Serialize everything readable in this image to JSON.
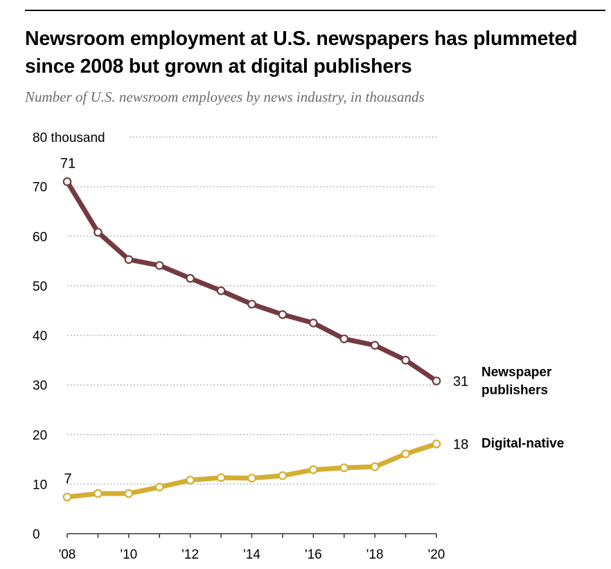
{
  "header": {
    "title": "Newsroom employment at U.S. newspapers has plummeted since 2008 but grown at digital publishers",
    "subtitle": "Number of U.S. newsroom employees by news industry, in thousands"
  },
  "chart_data": {
    "type": "line",
    "title": "Newsroom employment at U.S. newspapers has plummeted since 2008 but grown at digital publishers",
    "subtitle": "Number of U.S. newsroom employees by news industry, in thousands",
    "xlabel": "",
    "ylabel": "",
    "x": [
      2008,
      2009,
      2010,
      2011,
      2012,
      2013,
      2014,
      2015,
      2016,
      2017,
      2018,
      2019,
      2020
    ],
    "x_tick_values": [
      2008,
      2010,
      2012,
      2014,
      2016,
      2018,
      2020
    ],
    "x_tick_labels": [
      "'08",
      "'10",
      "'12",
      "'14",
      "'16",
      "'18",
      "'20"
    ],
    "ylim": [
      0,
      80
    ],
    "y_ticks": [
      0,
      10,
      20,
      30,
      40,
      50,
      60,
      70,
      80
    ],
    "y_tick_labels": [
      "0",
      "10",
      "20",
      "30",
      "40",
      "50",
      "60",
      "70",
      "80 thousand"
    ],
    "grid": true,
    "series": [
      {
        "name": "Newspaper publishers",
        "name_lines": [
          "Newspaper",
          "publishers"
        ],
        "color": "#743a42",
        "values": [
          71,
          60.8,
          55.3,
          54.1,
          51.5,
          49.0,
          46.3,
          44.2,
          42.5,
          39.3,
          38.0,
          35.0,
          30.8
        ],
        "start_label": "71",
        "end_label": "31"
      },
      {
        "name": "Digital-native",
        "name_lines": [
          "Digital-native"
        ],
        "color": "#d4ae32",
        "values": [
          7.4,
          8.1,
          8.1,
          9.4,
          10.8,
          11.3,
          11.2,
          11.7,
          12.9,
          13.3,
          13.5,
          16.1,
          18.1
        ],
        "start_label": "7",
        "end_label": "18"
      }
    ]
  }
}
